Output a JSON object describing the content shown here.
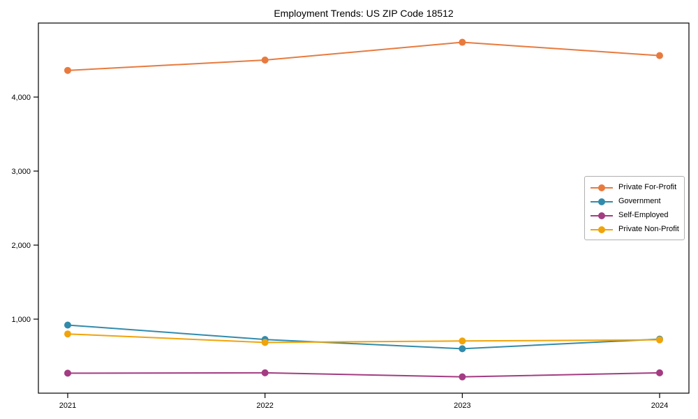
{
  "chart_data": {
    "type": "line",
    "title": "Employment Trends: US ZIP Code 18512",
    "categories": [
      "2021",
      "2022",
      "2023",
      "2024"
    ],
    "series": [
      {
        "name": "Private For-Profit",
        "color": "#e87a3e",
        "values": [
          4360,
          4500,
          4740,
          4560
        ]
      },
      {
        "name": "Government",
        "color": "#328bab",
        "values": [
          920,
          725,
          600,
          730
        ]
      },
      {
        "name": "Self-Employed",
        "color": "#a33c82",
        "values": [
          270,
          275,
          220,
          275
        ]
      },
      {
        "name": "Private Non-Profit",
        "color": "#f0a40a",
        "values": [
          800,
          685,
          705,
          720
        ]
      }
    ],
    "xlabel": "",
    "ylabel": "",
    "ylim": [
      0,
      5000
    ],
    "yticks": [
      1000,
      2000,
      3000,
      4000
    ],
    "ytick_labels": [
      "1,000",
      "2,000",
      "3,000",
      "4,000"
    ],
    "grid": false,
    "legend_position": "center-right",
    "frame": "full-box",
    "background_color": "#ffffff",
    "axis_color": "#000000"
  }
}
